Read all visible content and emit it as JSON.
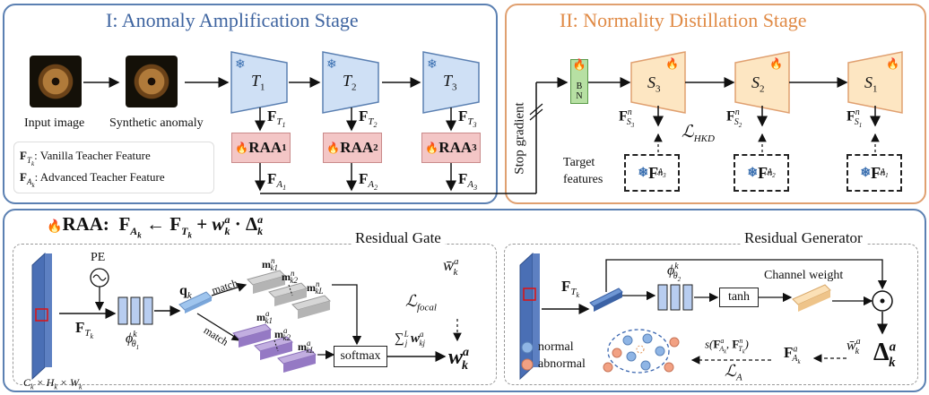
{
  "stage1": {
    "title": "I: Anomaly Amplification Stage",
    "input_label": "Input image",
    "synthetic_label": "Synthetic anomaly",
    "teachers": [
      "T1",
      "T2",
      "T3"
    ],
    "teacher_features": [
      "F_T1",
      "F_T2",
      "F_T3"
    ],
    "raa_blocks": [
      "RAA1",
      "RAA2",
      "RAA3"
    ],
    "advanced_features": [
      "F_A1",
      "F_A2",
      "F_A3"
    ],
    "legend": [
      {
        "symbol": "F_Tk",
        "text": ": Vanilla Teacher Feature"
      },
      {
        "symbol": "F_Ak",
        "text": ": Advanced Teacher Feature"
      }
    ]
  },
  "stage2": {
    "title": "II: Normality Distillation Stage",
    "stop_gradient": "Stop gradient",
    "bn_label": [
      "B",
      "N"
    ],
    "students": [
      "S3",
      "S2",
      "S1"
    ],
    "student_features": [
      "F^n_S3",
      "F^n_S2",
      "F^n_S1"
    ],
    "targets": [
      "F^n_A3",
      "F^n_A2",
      "F^n_A1"
    ],
    "target_label": "Target features",
    "loss": "L_HKD"
  },
  "raa": {
    "header": "RAA:",
    "formula": "F_Ak ← F_Tk + w^a_k · Δ^a_k",
    "gate": {
      "title": "Residual Gate",
      "pe": "PE",
      "input_dims": "C_k × H_k × W_k",
      "input_feature": "F_Tk",
      "phi": "φ^k_θ1",
      "q": "q_k",
      "match": "match",
      "normal_keys": [
        "m^n_k1",
        "m^n_k2",
        "m^n_kL"
      ],
      "abnormal_keys": [
        "m^a_k1",
        "m^a_k2",
        "m^a_kL"
      ],
      "softmax": "softmax",
      "sum": "Σ^L_j w^a_kj",
      "focal": "L_focal",
      "w_bar": "w̄^a_k",
      "w_out": "w^a_k"
    },
    "generator": {
      "title": "Residual Generator",
      "input_feature": "F_Tk",
      "phi": "φ^k_θ2",
      "tanh": "tanh",
      "channel_weight": "Channel weight",
      "legend_normal": "normal",
      "legend_abnormal": "abnormal",
      "similarity": "s(F^a_Ak, F^n_Tk)",
      "loss": "L_A",
      "w_bar": "w̄^a_k",
      "feat": "F^a_Ak",
      "delta": "Δ^a_k"
    }
  },
  "colors": {
    "stage1_border": "#5b80b2",
    "stage2_border": "#e0a070",
    "stage2_title": "#e08a45",
    "teacher_fill": "#cfe0f5",
    "student_fill": "#fde6c2",
    "raa_fill": "#f3c6c6",
    "bn_fill": "#b7e0a3",
    "normal_key": "#c8c8c8",
    "abnormal_key": "#a78bc9",
    "normal_dot": "#8fb5e5",
    "abnormal_dot": "#f2a183"
  }
}
